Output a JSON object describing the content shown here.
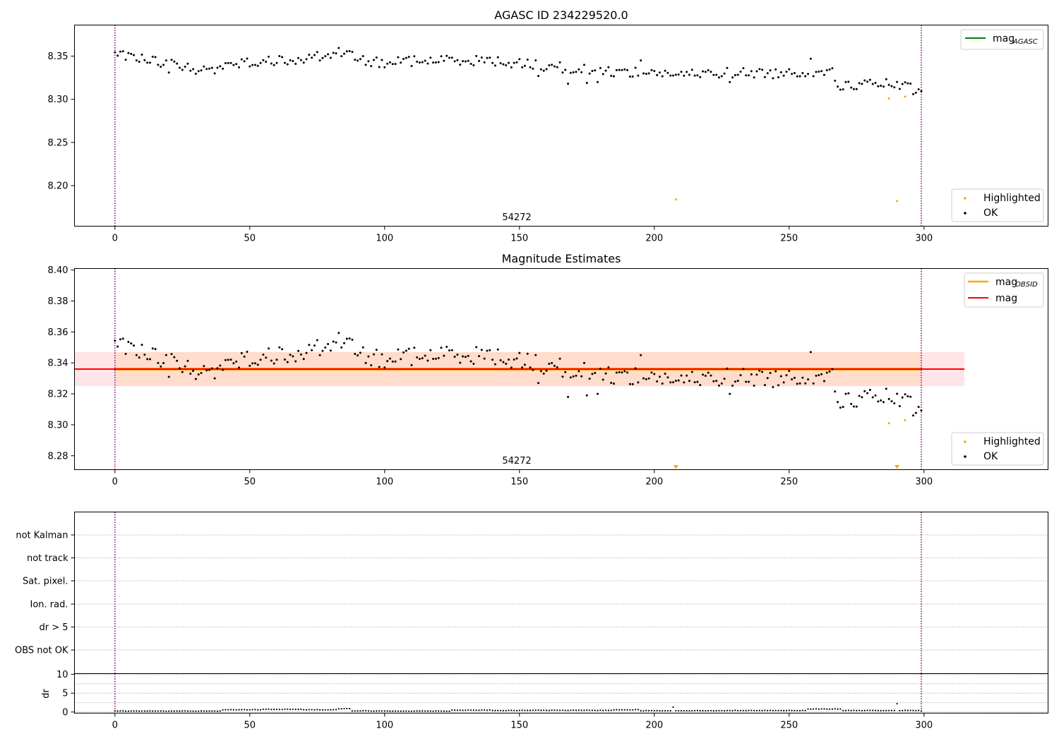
{
  "chart_data": [
    {
      "type": "scatter",
      "title": "AGASC ID 234229520.0",
      "xlim": [
        -15,
        346
      ],
      "ylim": [
        8.153,
        8.386
      ],
      "xticks": [
        "0",
        "50",
        "100",
        "150",
        "200",
        "250",
        "300"
      ],
      "yticks": [
        "8.20",
        "8.25",
        "8.30",
        "8.35"
      ],
      "grid": false,
      "vlines": [
        0,
        299
      ],
      "obsid_label": "54272",
      "legends": {
        "lines": {
          "position": "top-right",
          "entries": [
            "mag",
            "AGASC"
          ]
        },
        "points": {
          "position": "bottom-right",
          "entries": [
            "Highlighted",
            "OK"
          ]
        }
      },
      "series": [
        {
          "name": "OK",
          "color": "#000000",
          "trend": [
            [
              0,
              8.353
            ],
            [
              20,
              8.342
            ],
            [
              32,
              8.333
            ],
            [
              45,
              8.342
            ],
            [
              70,
              8.347
            ],
            [
              82,
              8.355
            ],
            [
              95,
              8.343
            ],
            [
              130,
              8.346
            ],
            [
              150,
              8.342
            ],
            [
              170,
              8.335
            ],
            [
              185,
              8.332
            ],
            [
              200,
              8.331
            ],
            [
              212,
              8.328
            ],
            [
              225,
              8.331
            ],
            [
              240,
              8.33
            ],
            [
              255,
              8.331
            ],
            [
              262,
              8.334
            ],
            [
              266,
              8.33
            ],
            [
              268,
              8.316
            ],
            [
              285,
              8.318
            ],
            [
              299,
              8.311
            ]
          ],
          "outliers": [
            [
              20,
              8.331
            ],
            [
              37,
              8.33
            ],
            [
              61,
              8.35
            ],
            [
              100,
              8.337
            ],
            [
              157,
              8.327
            ],
            [
              168,
              8.318
            ],
            [
              175,
              8.319
            ],
            [
              179,
              8.32
            ],
            [
              195,
              8.345
            ],
            [
              228,
              8.32
            ],
            [
              258,
              8.347
            ],
            [
              296,
              8.306
            ]
          ]
        },
        {
          "name": "Highlighted",
          "color": "#ffa500",
          "points": [
            [
              208,
              8.184
            ],
            [
              287,
              8.301
            ],
            [
              290,
              8.182
            ],
            [
              293,
              8.303
            ]
          ]
        }
      ]
    },
    {
      "type": "scatter",
      "title": "Magnitude Estimates",
      "xlim": [
        -15,
        346
      ],
      "ylim": [
        8.271,
        8.401
      ],
      "xticks": [
        "0",
        "50",
        "100",
        "150",
        "200",
        "250",
        "300"
      ],
      "yticks": [
        "8.28",
        "8.30",
        "8.32",
        "8.34",
        "8.36",
        "8.38",
        "8.40"
      ],
      "grid": false,
      "vlines": [
        0,
        299
      ],
      "obsid_label": "54272",
      "mag": 8.336,
      "mag_band": [
        8.325,
        8.347
      ],
      "mag_obsid": 8.336,
      "legends": {
        "lines": {
          "position": "top-right",
          "entries": [
            "mag",
            "OBSID",
            "mag"
          ]
        },
        "points": {
          "position": "bottom-right",
          "entries": [
            "Highlighted",
            "OK"
          ]
        }
      },
      "series": [
        {
          "name": "OK",
          "color": "#000000",
          "same_as": "panel-1"
        },
        {
          "name": "Highlighted",
          "color": "#ffa500",
          "points": [
            [
              287,
              8.301
            ],
            [
              293,
              8.303
            ]
          ],
          "below_axis": [
            208,
            290
          ]
        }
      ]
    },
    {
      "type": "scatter",
      "categories": [
        "not Kalman",
        "not track",
        "Sat. pixel.",
        "Ion. rad.",
        "dr > 5",
        "OBS not OK"
      ],
      "xlim": [
        -15,
        346
      ],
      "vlines": [
        0,
        299
      ],
      "grid": true
    },
    {
      "type": "scatter",
      "ylabel": "dr",
      "xlim": [
        -15,
        346
      ],
      "ylim": [
        -0.3,
        10.2
      ],
      "xticks": [
        "0",
        "50",
        "100",
        "150",
        "200",
        "250",
        "300"
      ],
      "yticks": [
        "0",
        "5",
        "10"
      ],
      "grid": true,
      "vlines": [
        0,
        299
      ],
      "segments": [
        [
          0,
          40,
          0.25
        ],
        [
          40,
          55,
          0.6
        ],
        [
          55,
          70,
          0.7
        ],
        [
          70,
          83,
          0.6
        ],
        [
          83,
          88,
          0.9
        ],
        [
          88,
          95,
          0.3
        ],
        [
          95,
          125,
          0.25
        ],
        [
          125,
          140,
          0.5
        ],
        [
          140,
          150,
          0.4
        ],
        [
          150,
          185,
          0.45
        ],
        [
          185,
          195,
          0.6
        ],
        [
          195,
          212,
          0.35
        ],
        [
          212,
          230,
          0.35
        ],
        [
          230,
          257,
          0.4
        ],
        [
          257,
          270,
          0.8
        ],
        [
          270,
          299,
          0.4
        ]
      ],
      "spikes": [
        [
          207,
          1.3
        ],
        [
          290,
          2.2
        ]
      ]
    }
  ]
}
